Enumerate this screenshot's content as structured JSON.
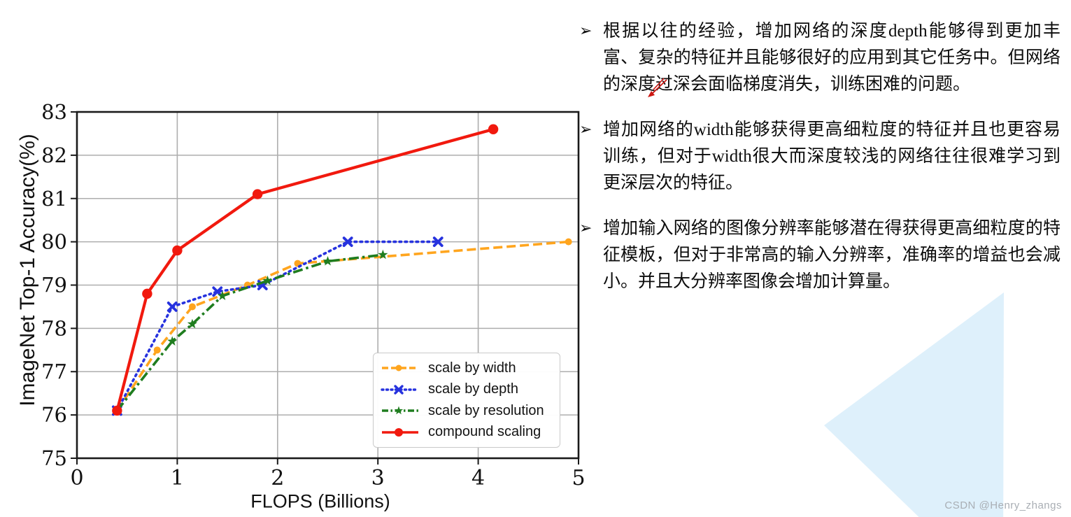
{
  "watermark": {
    "text": "CSDN @Henry_zhangs",
    "color": "#a9aeb4"
  },
  "decor": {
    "triangle_color": "#def0fb",
    "pen_mark_icon": "red-arrow-pen-stroke",
    "pen_mark_color": "#cc1712"
  },
  "bullets": {
    "marker": "➢",
    "items": [
      {
        "text": "根据以往的经验，增加网络的深度depth能够得到更加丰富、复杂的特征并且能够很好的应用到其它任务中。但网络的深度过深会面临梯度消失，训练困难的问题。"
      },
      {
        "text": "增加网络的width能够获得更高细粒度的特征并且也更容易训练，但对于width很大而深度较浅的网络往往很难学习到更深层次的特征。"
      },
      {
        "text": "增加输入网络的图像分辨率能够潜在得获得更高细粒度的特征模板，但对于非常高的输入分辨率，准确率的增益也会减小。并且大分辨率图像会增加计算量。"
      }
    ]
  },
  "chart_data": {
    "type": "line",
    "title": "",
    "xlabel": "FLOPS (Billions)",
    "ylabel": "ImageNet Top-1 Accuracy(%)",
    "xlim": [
      0,
      5
    ],
    "ylim": [
      75,
      83
    ],
    "xticks": [
      0,
      1,
      2,
      3,
      4,
      5
    ],
    "yticks": [
      75,
      76,
      77,
      78,
      79,
      80,
      81,
      82,
      83
    ],
    "grid": true,
    "grid_color": "#aeaeae",
    "spine_color": "#1a1a1a",
    "legend_position": "lower-right-inside",
    "series": [
      {
        "name": "scale by width",
        "color": "#FFA51E",
        "line_style": "dashed",
        "marker": "circle-small",
        "points": [
          [
            0.4,
            76.1
          ],
          [
            0.8,
            77.5
          ],
          [
            1.15,
            78.5
          ],
          [
            1.7,
            79.0
          ],
          [
            2.2,
            79.5
          ],
          [
            4.9,
            80.0
          ]
        ]
      },
      {
        "name": "scale by depth",
        "color": "#2632DE",
        "line_style": "dotted",
        "marker": "x",
        "points": [
          [
            0.4,
            76.1
          ],
          [
            0.95,
            78.5
          ],
          [
            1.4,
            78.85
          ],
          [
            1.85,
            79.0
          ],
          [
            2.7,
            80.0
          ],
          [
            3.6,
            80.0
          ]
        ]
      },
      {
        "name": "scale by resolution",
        "color": "#1F7D1F",
        "line_style": "dashdot",
        "marker": "star",
        "points": [
          [
            0.4,
            76.1
          ],
          [
            0.95,
            77.7
          ],
          [
            1.15,
            78.1
          ],
          [
            1.45,
            78.75
          ],
          [
            1.9,
            79.1
          ],
          [
            2.5,
            79.55
          ],
          [
            3.05,
            79.7
          ]
        ]
      },
      {
        "name": "compound scaling",
        "color": "#F1190E",
        "line_style": "solid",
        "marker": "circle",
        "points": [
          [
            0.4,
            76.1
          ],
          [
            0.7,
            78.8
          ],
          [
            1.0,
            79.8
          ],
          [
            1.8,
            81.1
          ],
          [
            4.15,
            82.6
          ]
        ]
      }
    ]
  }
}
